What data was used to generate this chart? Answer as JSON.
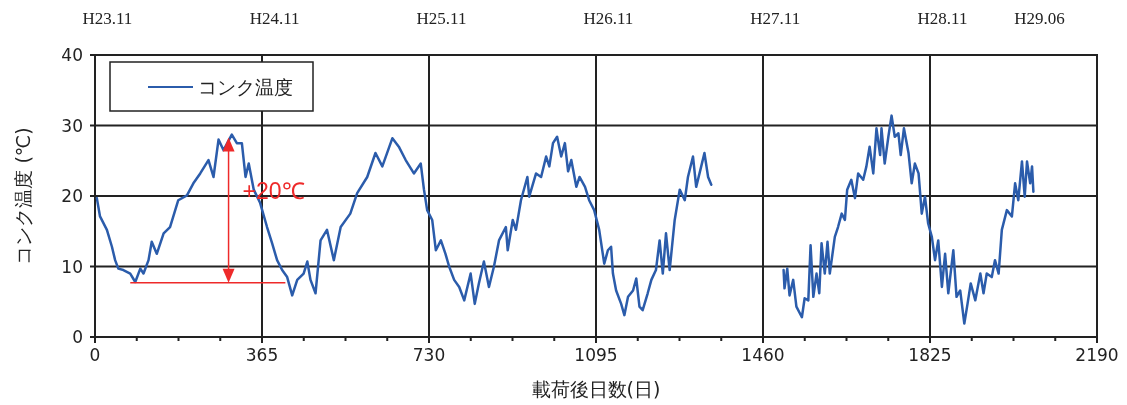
{
  "chart_data": {
    "type": "line",
    "xlabel": "載荷後日数(日)",
    "ylabel": "コンク温度 (℃)",
    "xlim": [
      0,
      2190
    ],
    "xticks": [
      0,
      {
        "value": 91.25,
        "label": null
      },
      {
        "value": 182.5,
        "label": null
      },
      {
        "value": 273.75,
        "label": null
      },
      365,
      {
        "value": 456.25,
        "label": null
      },
      {
        "value": 547.5,
        "label": null
      },
      {
        "value": 638.75,
        "label": null
      },
      730,
      {
        "value": 821.25,
        "label": null
      },
      {
        "value": 912.5,
        "label": null
      },
      {
        "value": 1003.75,
        "label": null
      },
      1095,
      {
        "value": 1186.25,
        "label": null
      },
      {
        "value": 1277.5,
        "label": null
      },
      {
        "value": 1368.75,
        "label": null
      },
      1460,
      {
        "value": 1551.25,
        "label": null
      },
      {
        "value": 1642.5,
        "label": null
      },
      {
        "value": 1733.75,
        "label": null
      },
      1825,
      {
        "value": 1916.25,
        "label": null
      },
      {
        "value": 2007.5,
        "label": null
      },
      {
        "value": 2098.75,
        "label": null
      },
      2190
    ],
    "x2lim": [
      "2011-10-05",
      "2017-10-05"
    ],
    "x2ticks": [
      {
        "value": "2011-11-01",
        "label": "H23.11"
      },
      {
        "value": "2012-11-01",
        "label": "H24.11"
      },
      {
        "value": "2013-11-01",
        "label": "H25.11"
      },
      {
        "value": "2014-11-01",
        "label": "H26.11"
      },
      {
        "value": "2015-11-01",
        "label": "H27.11"
      },
      {
        "value": "2016-11-01",
        "label": "H28.11"
      },
      {
        "value": "2017-06-01",
        "label": "H29.06"
      }
    ],
    "ylim": [
      0,
      40
    ],
    "yticks": [
      0,
      10,
      20,
      30,
      40
    ],
    "grid": true,
    "legend": "top left",
    "annotations": [
      "+20℃"
    ],
    "series": [
      {
        "name": "コンク温度",
        "color": "#2b5cab",
        "x": [
          4,
          11,
          26,
          37,
          44,
          51,
          62,
          77,
          88,
          99,
          106,
          117,
          124,
          135,
          150,
          164,
          182,
          201,
          215,
          230,
          248,
          259,
          270,
          281,
          299,
          310,
          321,
          329,
          336,
          347,
          361,
          376,
          387,
          398,
          409,
          420,
          431,
          442,
          456,
          464,
          471,
          482,
          493,
          507,
          522,
          537,
          558,
          573,
          595,
          613,
          628,
          650,
          664,
          679,
          697,
          712,
          719,
          726,
          737,
          745,
          756,
          766,
          774,
          785,
          796,
          807,
          821,
          830,
          839,
          850,
          861,
          872,
          883,
          898,
          902,
          913,
          920,
          931,
          945,
          949,
          964,
          975,
          986,
          993,
          1001,
          1010,
          1019,
          1027,
          1034,
          1041,
          1052,
          1059,
          1071,
          1080,
          1091,
          1102,
          1113,
          1121,
          1128,
          1132,
          1139,
          1150,
          1157,
          1165,
          1176,
          1183,
          1190,
          1197,
          1208,
          1216,
          1226,
          1234,
          1241,
          1248,
          1256,
          1267,
          1278,
          1289,
          1296,
          1307,
          1314,
          1325,
          1332,
          1340,
          1347
        ],
        "values": [
          19.7,
          17.1,
          15.2,
          12.8,
          10.9,
          9.7,
          9.5,
          9.0,
          7.8,
          9.7,
          9.0,
          10.9,
          13.5,
          11.8,
          14.7,
          15.6,
          19.4,
          20.1,
          21.8,
          23.2,
          25.1,
          22.7,
          28.0,
          26.5,
          28.7,
          27.5,
          27.5,
          22.7,
          24.6,
          20.9,
          19.0,
          15.6,
          13.3,
          10.9,
          9.5,
          8.5,
          5.9,
          8.1,
          9.0,
          10.7,
          8.1,
          6.2,
          13.7,
          15.2,
          10.9,
          15.6,
          17.5,
          20.4,
          22.7,
          26.1,
          24.2,
          28.2,
          27.0,
          25.1,
          23.2,
          24.6,
          20.9,
          18.0,
          16.6,
          12.3,
          13.7,
          11.8,
          10.0,
          8.1,
          7.1,
          5.2,
          9.0,
          4.7,
          7.6,
          10.7,
          7.1,
          10.0,
          13.7,
          15.6,
          12.3,
          16.6,
          15.2,
          19.4,
          22.7,
          19.9,
          23.2,
          22.7,
          25.6,
          24.2,
          27.5,
          28.4,
          25.6,
          27.5,
          23.5,
          25.1,
          21.3,
          22.7,
          21.3,
          19.4,
          18.0,
          15.2,
          10.4,
          12.3,
          12.8,
          9.0,
          6.6,
          4.7,
          3.1,
          5.7,
          6.6,
          8.3,
          4.3,
          3.8,
          6.2,
          8.1,
          9.5,
          13.7,
          9.0,
          14.7,
          9.5,
          16.6,
          20.9,
          19.4,
          22.7,
          25.6,
          21.3,
          24.2,
          26.1,
          22.7,
          21.6
        ]
      },
      {
        "color": "#2b5cab",
        "x": [
          1505,
          1507,
          1513,
          1518,
          1526,
          1533,
          1545,
          1551,
          1559,
          1564,
          1570,
          1577,
          1583,
          1588,
          1595,
          1601,
          1606,
          1617,
          1624,
          1632,
          1639,
          1644,
          1653,
          1661,
          1668,
          1679,
          1686,
          1693,
          1701,
          1708,
          1716,
          1719,
          1726,
          1734,
          1741,
          1748,
          1756,
          1761,
          1768,
          1778,
          1785,
          1792,
          1800,
          1807,
          1814,
          1821,
          1829,
          1836,
          1843,
          1851,
          1858,
          1865,
          1876,
          1883,
          1891,
          1900,
          1907,
          1914,
          1924,
          1935,
          1942,
          1949,
          1960,
          1967,
          1975,
          1982,
          1993,
          2004,
          2011,
          2018,
          2026,
          2032,
          2037,
          2044,
          2048,
          2051
        ],
        "values": [
          9.5,
          6.9,
          9.7,
          5.9,
          8.1,
          4.3,
          2.8,
          5.5,
          5.2,
          13.0,
          5.7,
          9.0,
          6.2,
          13.3,
          9.0,
          13.5,
          9.0,
          14.2,
          15.6,
          17.5,
          16.6,
          20.9,
          22.3,
          19.7,
          23.2,
          22.3,
          24.2,
          27.0,
          23.2,
          29.6,
          25.8,
          29.6,
          24.6,
          28.4,
          31.4,
          28.4,
          28.9,
          25.8,
          29.6,
          26.1,
          21.8,
          24.6,
          23.2,
          17.5,
          19.9,
          16.1,
          14.2,
          10.9,
          13.7,
          7.1,
          11.8,
          6.2,
          12.3,
          5.7,
          6.6,
          1.9,
          4.7,
          7.6,
          5.2,
          9.0,
          6.2,
          9.0,
          8.5,
          10.9,
          9.0,
          15.2,
          18.0,
          17.1,
          21.8,
          19.4,
          24.9,
          19.9,
          24.9,
          21.8,
          24.2,
          20.6
        ]
      }
    ]
  }
}
